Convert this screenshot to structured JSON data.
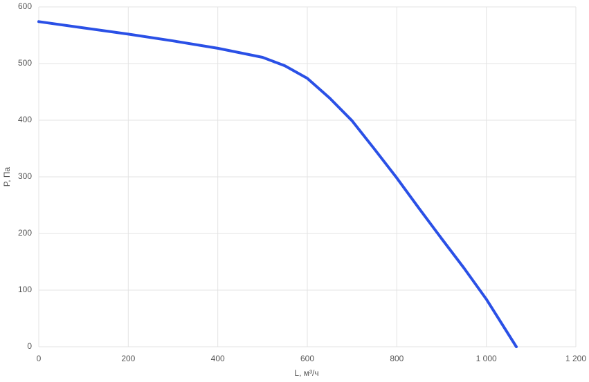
{
  "chart_data": {
    "type": "line",
    "x_label": "L, м³/ч",
    "y_label": "P, Па",
    "x": [
      0,
      100,
      200,
      300,
      400,
      500,
      550,
      600,
      650,
      700,
      750,
      800,
      850,
      900,
      950,
      1000,
      1067
    ],
    "series": [
      {
        "name": "P",
        "color": "#2a50e6",
        "values": [
          574,
          563,
          552,
          540,
          527,
          511,
          496,
          474,
          439,
          399,
          349,
          298,
          244,
          191,
          139,
          84,
          0
        ]
      }
    ],
    "xlim": [
      0,
      1200
    ],
    "xticks": [
      0,
      200,
      400,
      600,
      800,
      {
        "value": 1000,
        "label": "1 000"
      },
      {
        "value": 1200,
        "label": "1 200"
      }
    ],
    "ylim": [
      0,
      600
    ],
    "yticks": [
      0,
      100,
      200,
      300,
      400,
      500,
      600
    ],
    "grid": true
  }
}
